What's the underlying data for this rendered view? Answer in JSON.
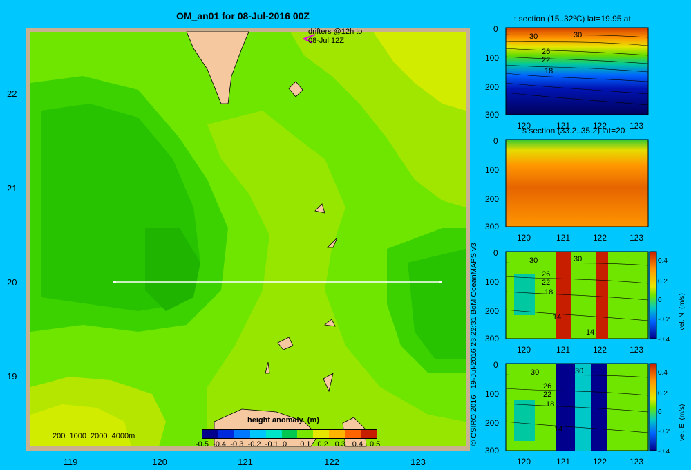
{
  "colors": {
    "background": "#00c8ff",
    "map_frame": "#c8b090",
    "land": "#f5c8a0",
    "transect": "#ffffff",
    "drifter": "#e000e0"
  },
  "main_map": {
    "title": "OM_an01 for 08-Jul-2016 00Z",
    "drifter_note_line1": "drifters @12h to",
    "drifter_note_line2": "08-Jul 12Z",
    "depth_contours_note": "200  1000  2000  4000m",
    "colorbar_title": "height anomaly  (m)",
    "colorbar_ticks": [
      "-0.5",
      "-0.4",
      "-0.3",
      "-0.2",
      "-0.1",
      "0",
      "0.1",
      "0.2",
      "0.3",
      "0.4",
      "0.5"
    ],
    "colorbar_colors": [
      "#00008c",
      "#0028dc",
      "#0078ff",
      "#00c8ff",
      "#00e6c8",
      "#00c850",
      "#78e600",
      "#e6e600",
      "#ffb400",
      "#ff6400",
      "#c81e00"
    ],
    "credit": "© CSIRO 2016   19-Jul-2016 23:22:31 BoM OceanMAPS v3"
  },
  "chart_data": [
    {
      "type": "heatmap",
      "name_hint": "height anomaly map",
      "title": "OM_an01 for 08-Jul-2016 00Z",
      "xlim": [
        118.5,
        123.5
      ],
      "ylim": [
        18.25,
        22.75
      ],
      "x_ticks": [
        "119",
        "120",
        "121",
        "122",
        "123"
      ],
      "y_ticks": [
        "19",
        "20",
        "21",
        "22"
      ],
      "transect_lat": 20,
      "transect_lon": [
        119.5,
        123.2
      ],
      "colorbar_label": "height anomaly  (m)",
      "colorbar_range": [
        -0.5,
        0.5
      ]
    },
    {
      "type": "heatmap",
      "title": "t section (15..32ºC) lat=19.95 at",
      "x_ticks": [
        "120",
        "121",
        "122",
        "123"
      ],
      "y_ticks": [
        "0",
        "100",
        "200",
        "300"
      ],
      "contour_labels": [
        "30",
        "30",
        "26",
        "22",
        "18"
      ]
    },
    {
      "type": "heatmap",
      "title": "s section (33.2..35.2) lat=20",
      "x_ticks": [
        "120",
        "121",
        "122",
        "123"
      ],
      "y_ticks": [
        "0",
        "100",
        "200",
        "300"
      ]
    },
    {
      "type": "heatmap",
      "title": "",
      "x_ticks": [
        "120",
        "121",
        "122",
        "123"
      ],
      "y_ticks": [
        "0",
        "100",
        "200",
        "300"
      ],
      "colorbar_label": "vel. N  (m/s)",
      "colorbar_ticks": [
        "0.4",
        "0.2",
        "0",
        "-0.2",
        "-0.4"
      ],
      "contour_labels": [
        "30",
        "30",
        "26",
        "22",
        "18",
        "14",
        "14"
      ]
    },
    {
      "type": "heatmap",
      "title": "",
      "x_ticks": [
        "120",
        "121",
        "122",
        "123"
      ],
      "y_ticks": [
        "0",
        "100",
        "200",
        "300"
      ],
      "colorbar_label": "vel. E  (m/s)",
      "colorbar_ticks": [
        "0.4",
        "0.2",
        "0",
        "-0.2",
        "-0.4"
      ],
      "contour_labels": [
        "30",
        "30",
        "26",
        "22",
        "18",
        "14"
      ]
    }
  ],
  "panels": {
    "t": {
      "title": "t section (15..32ºC) lat=19.95 at"
    },
    "s": {
      "title": "s section (33.2..35.2) lat=20"
    },
    "vn": {
      "cb_label": "vel. N  (m/s)"
    },
    "ve": {
      "cb_label": "vel. E  (m/s)"
    }
  }
}
